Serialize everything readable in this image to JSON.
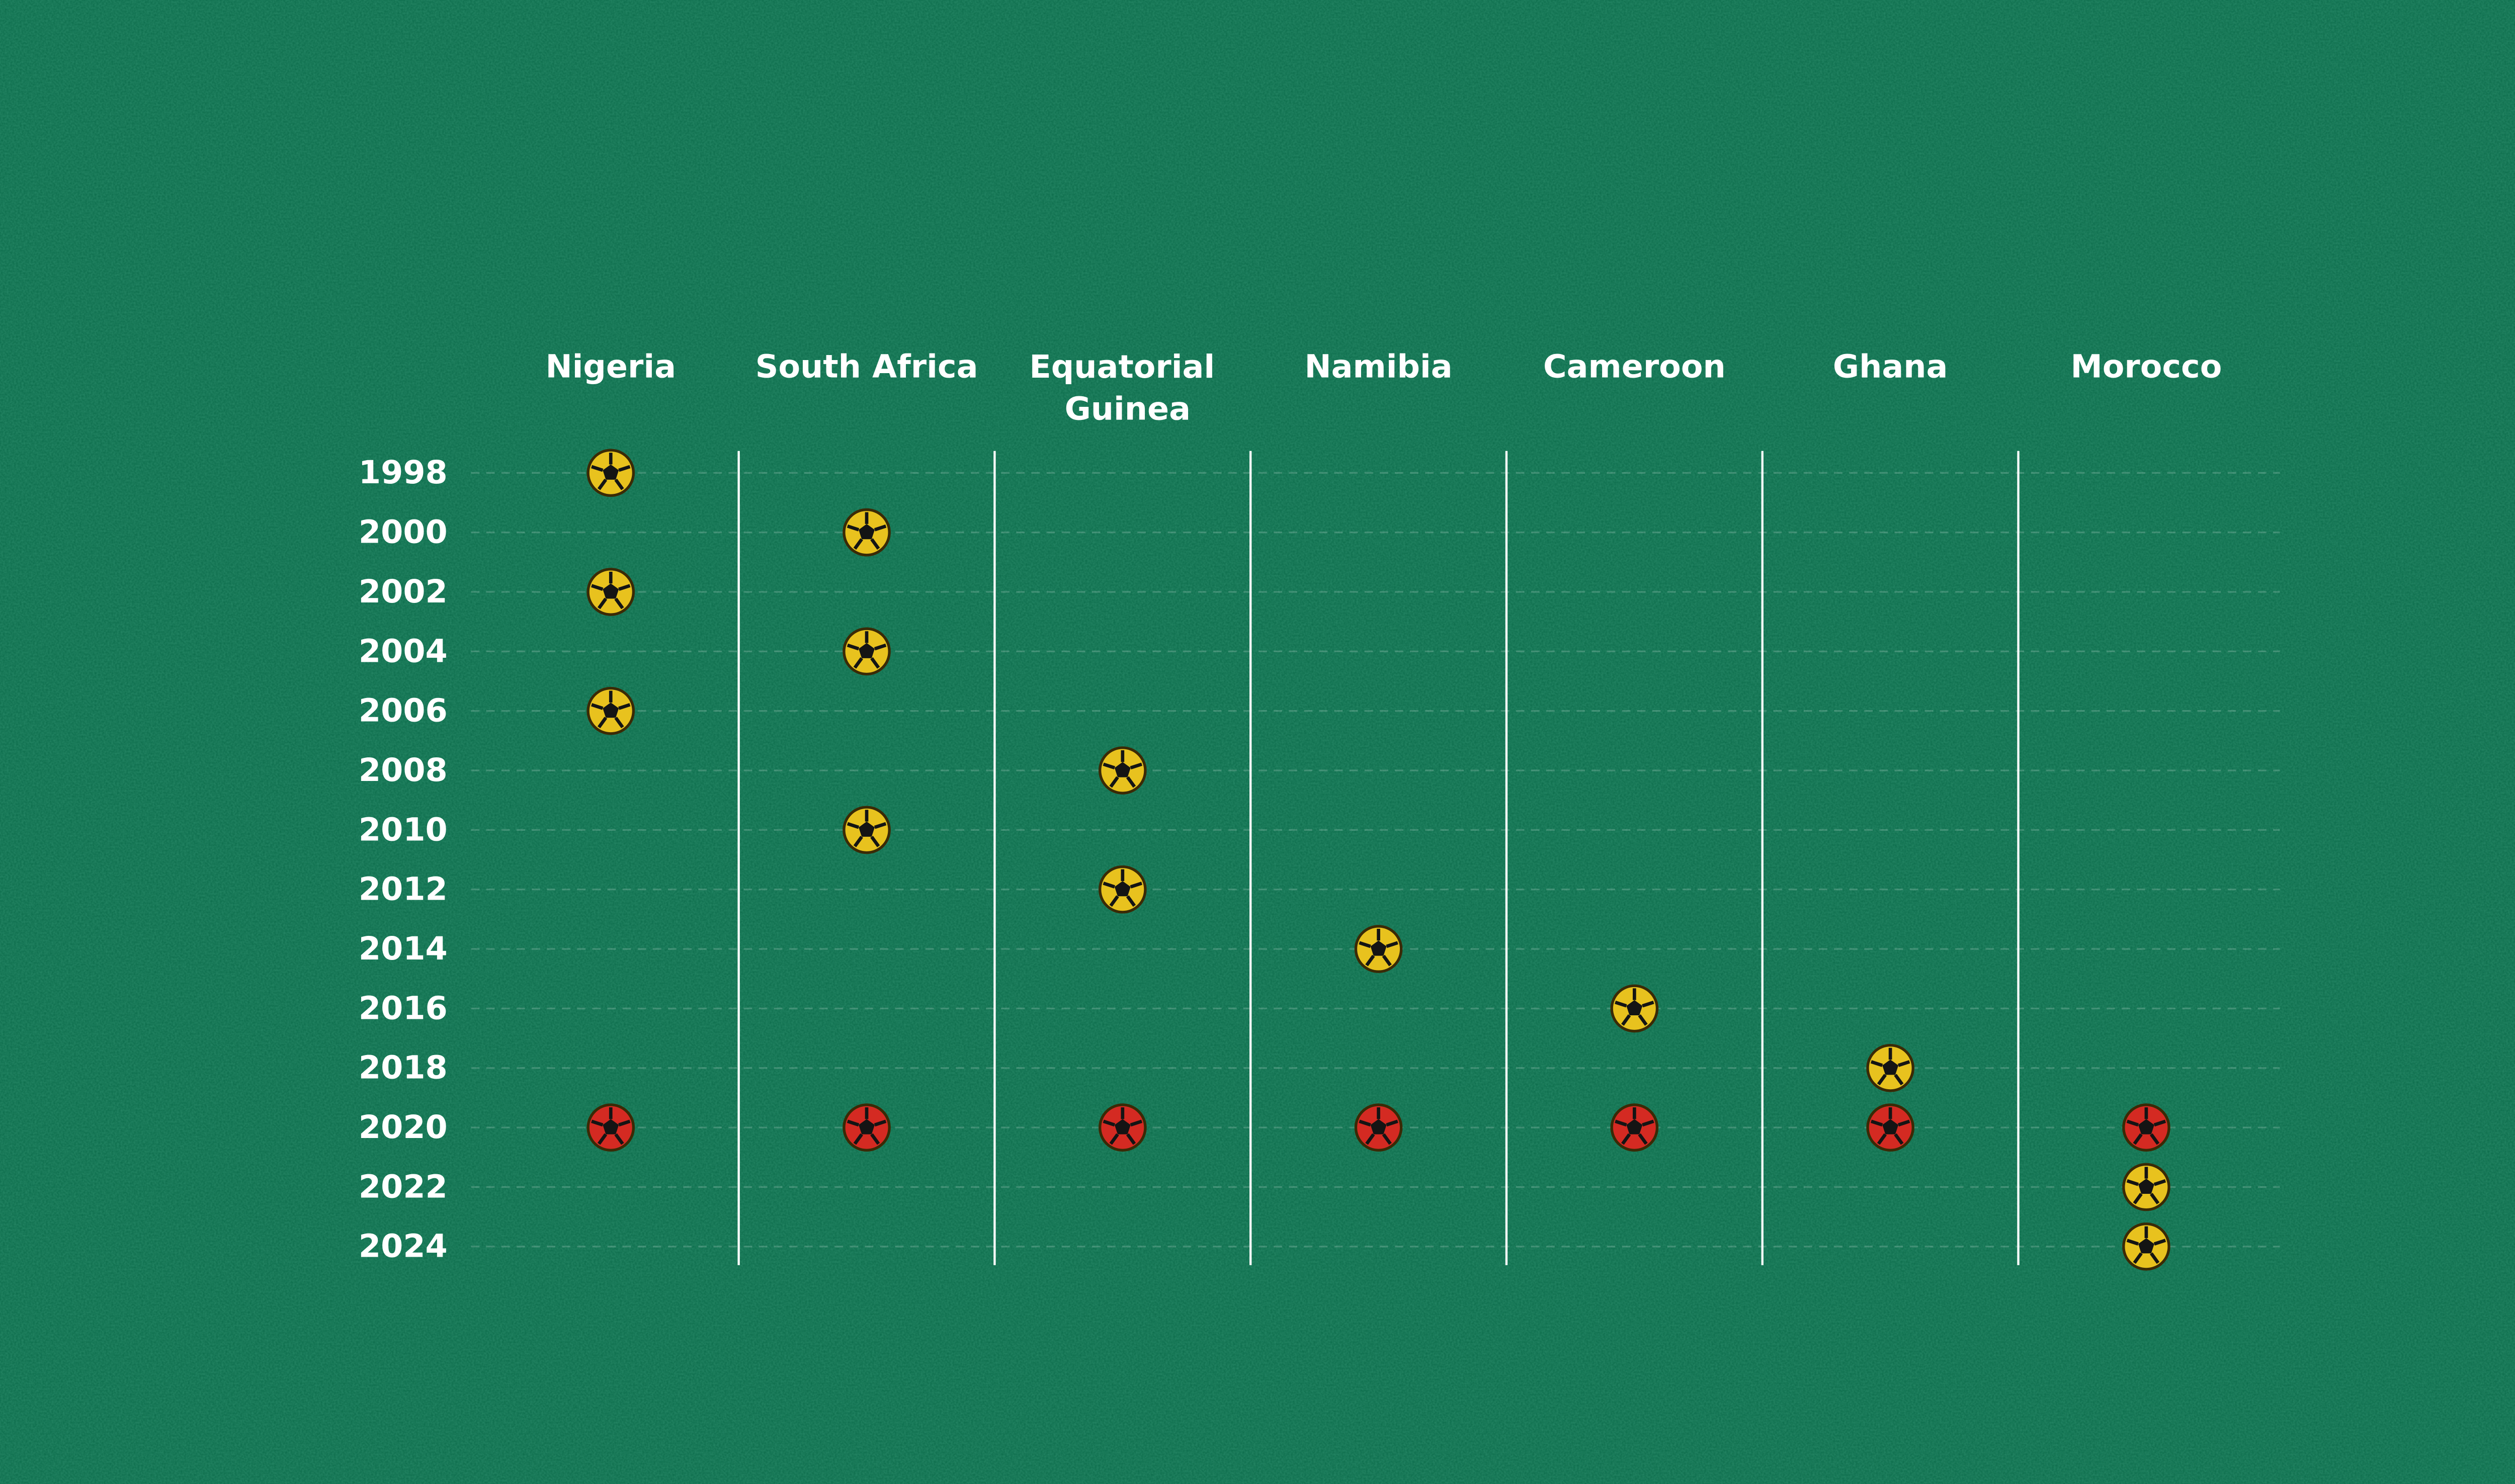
{
  "chart_data": {
    "type": "dot-matrix",
    "categories": [
      "1998",
      "2000",
      "2002",
      "2004",
      "2006",
      "2008",
      "2010",
      "2012",
      "2014",
      "2016",
      "2018",
      "2020",
      "2022",
      "2024"
    ],
    "series": [
      {
        "name": "Nigeria",
        "marks": [
          "#e8c21e",
          null,
          "#e8c21e",
          null,
          "#e8c21e",
          null,
          null,
          null,
          null,
          null,
          null,
          "#d42a22",
          null,
          null
        ]
      },
      {
        "name": "South Africa",
        "marks": [
          null,
          "#e8c21e",
          null,
          "#e8c21e",
          null,
          null,
          "#e8c21e",
          null,
          null,
          null,
          null,
          "#d42a22",
          null,
          null
        ]
      },
      {
        "name": "Equatorial Guinea",
        "marks": [
          null,
          null,
          null,
          null,
          null,
          "#e8c21e",
          null,
          "#e8c21e",
          null,
          null,
          null,
          "#d42a22",
          null,
          null
        ]
      },
      {
        "name": "Namibia",
        "marks": [
          null,
          null,
          null,
          null,
          null,
          null,
          null,
          null,
          "#e8c21e",
          null,
          null,
          "#d42a22",
          null,
          null
        ]
      },
      {
        "name": "Cameroon",
        "marks": [
          null,
          null,
          null,
          null,
          null,
          null,
          null,
          null,
          null,
          "#e8c21e",
          null,
          "#d42a22",
          null,
          null
        ]
      },
      {
        "name": "Ghana",
        "marks": [
          null,
          null,
          null,
          null,
          null,
          null,
          null,
          null,
          null,
          null,
          "#e8c21e",
          "#d42a22",
          null,
          null
        ]
      },
      {
        "name": "Morocco",
        "marks": [
          null,
          null,
          null,
          null,
          null,
          null,
          null,
          null,
          null,
          null,
          null,
          "#d42a22",
          "#e8c21e",
          "#e8c21e"
        ]
      }
    ]
  }
}
